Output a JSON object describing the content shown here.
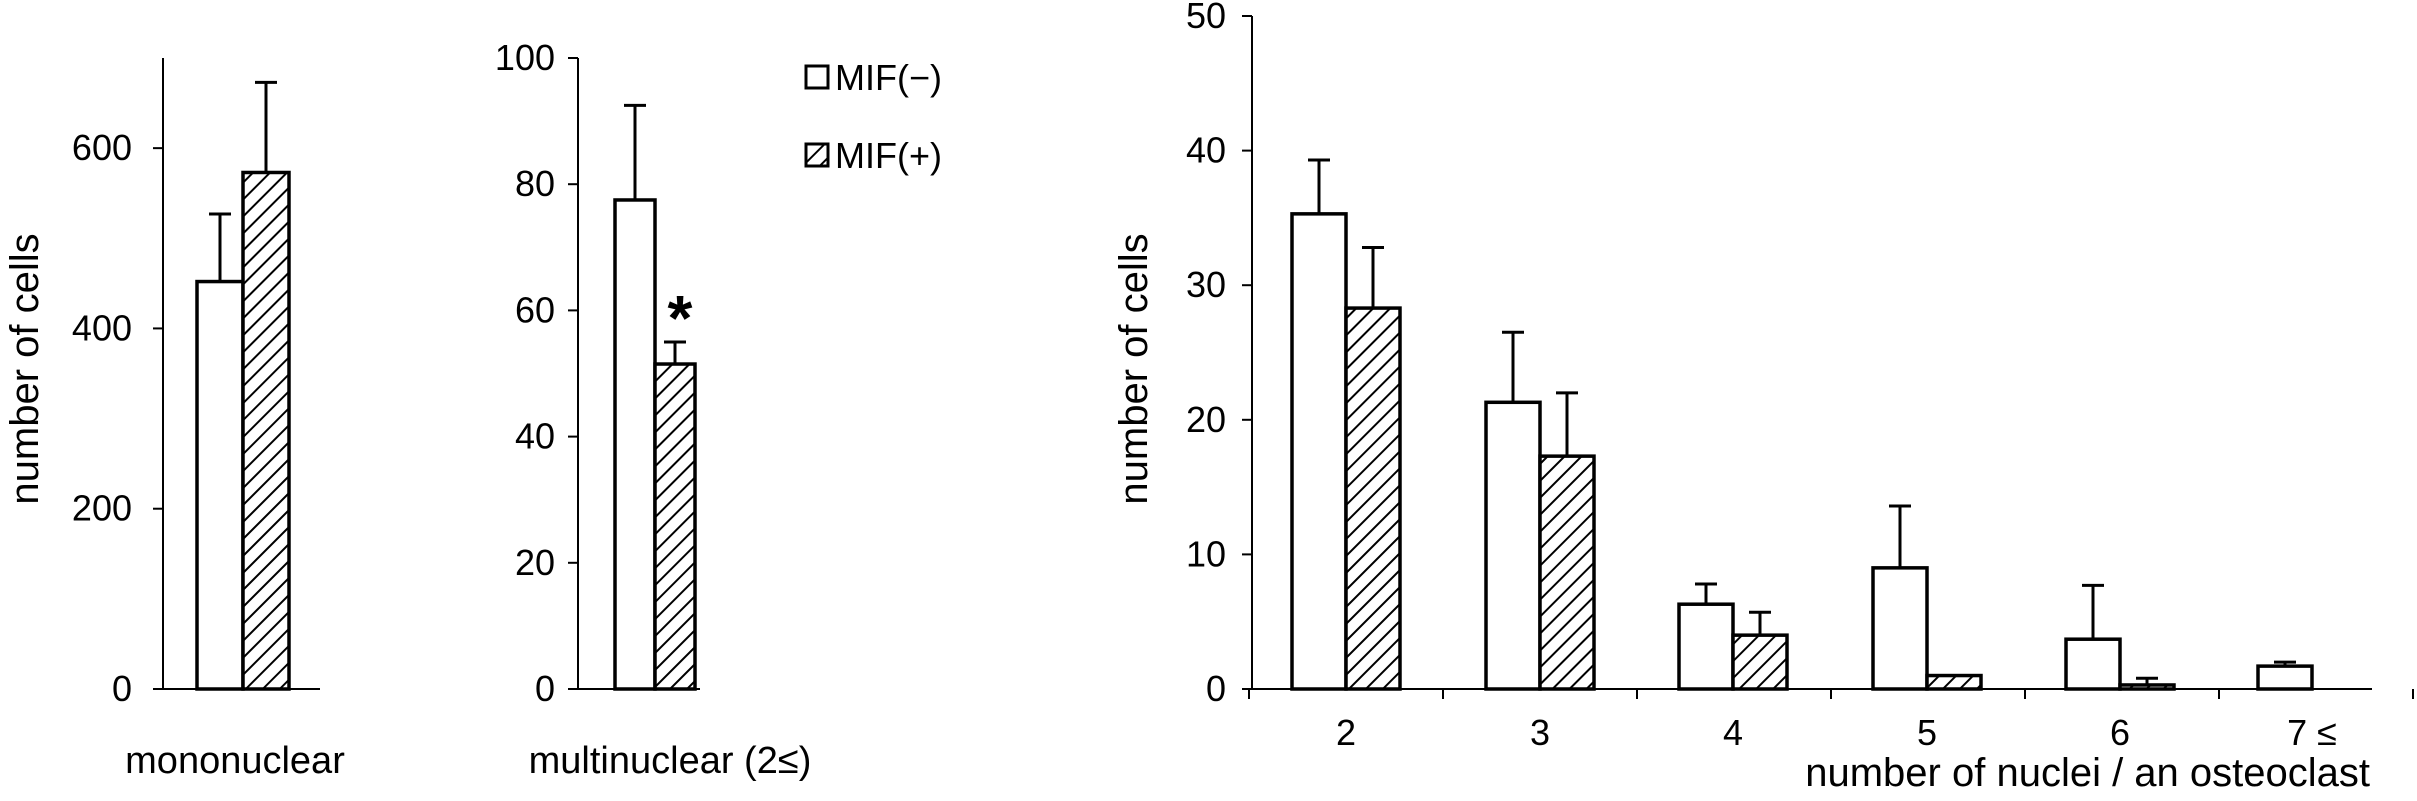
{
  "colors": {
    "axis": "#000000",
    "bar_open_fill": "#ffffff",
    "bar_stroke": "#000000",
    "hatch": "#000000"
  },
  "legend": {
    "items": [
      {
        "label": "MIF(−)",
        "style": "open"
      },
      {
        "label": "MIF(+)",
        "style": "hatched"
      }
    ]
  },
  "chart_data": [
    {
      "type": "bar",
      "categories": [
        "mononuclear"
      ],
      "ylabel": "number of cells",
      "xlabel": "",
      "ylim": [
        0,
        700
      ],
      "yticks": [
        0,
        200,
        400,
        600
      ],
      "series": [
        {
          "name": "MIF(−)",
          "style": "open",
          "values": [
            452
          ],
          "errors": [
            75
          ]
        },
        {
          "name": "MIF(+)",
          "style": "hatched",
          "values": [
            573
          ],
          "errors": [
            100
          ]
        }
      ],
      "annotations": []
    },
    {
      "type": "bar",
      "categories": [
        "multinuclear (2≤)"
      ],
      "ylabel": "",
      "xlabel": "",
      "ylim": [
        0,
        100
      ],
      "yticks": [
        0,
        20,
        40,
        60,
        80,
        100
      ],
      "series": [
        {
          "name": "MIF(−)",
          "style": "open",
          "values": [
            77.5
          ],
          "errors": [
            15
          ]
        },
        {
          "name": "MIF(+)",
          "style": "hatched",
          "values": [
            51.5
          ],
          "errors": [
            3.5
          ]
        }
      ],
      "annotations": [
        {
          "text": "*",
          "series": "MIF(+)",
          "category": "multinuclear (2≤)"
        }
      ]
    },
    {
      "type": "bar",
      "categories": [
        "2",
        "3",
        "4",
        "5",
        "6",
        "7 ≤"
      ],
      "ylabel": "number of cells",
      "xlabel": "number of nuclei / an osteoclast",
      "ylim": [
        0,
        50
      ],
      "yticks": [
        0,
        10,
        20,
        30,
        40,
        50
      ],
      "series": [
        {
          "name": "MIF(−)",
          "style": "open",
          "values": [
            35.3,
            21.3,
            6.3,
            9.0,
            3.7,
            1.7
          ],
          "errors": [
            4.0,
            5.2,
            1.5,
            4.6,
            4.0,
            0.3
          ]
        },
        {
          "name": "MIF(+)",
          "style": "hatched",
          "values": [
            28.3,
            17.3,
            4.0,
            1.0,
            0.3,
            0
          ],
          "errors": [
            4.5,
            4.7,
            1.7,
            0,
            0.5,
            0
          ]
        }
      ],
      "annotations": []
    }
  ]
}
